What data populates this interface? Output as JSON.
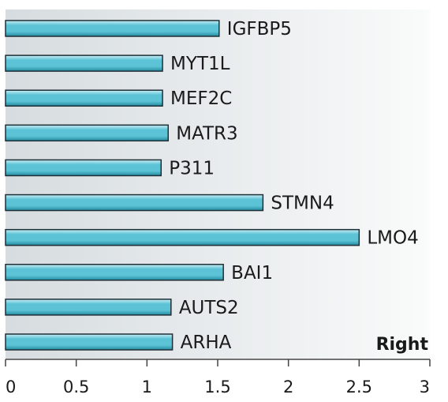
{
  "chart_data": {
    "type": "bar",
    "orientation": "horizontal",
    "panel_label": "Right",
    "categories": [
      "IGFBP5",
      "MYT1L",
      "MEF2C",
      "MATR3",
      "P311",
      "STMN4",
      "LMO4",
      "BAI1",
      "AUTS2",
      "ARHA"
    ],
    "values": [
      1.51,
      1.11,
      1.11,
      1.15,
      1.1,
      1.82,
      2.5,
      1.54,
      1.17,
      1.18
    ],
    "xlim": [
      0,
      3
    ],
    "xticks": [
      0,
      0.5,
      1,
      1.5,
      2,
      2.5,
      3
    ],
    "xtick_labels": [
      "0",
      "0.5",
      "1",
      "1.5",
      "2",
      "2.5",
      "3"
    ],
    "grid": false,
    "colors": {
      "bar_light": "#c9eef6",
      "bar_mid": "#5cc3d6",
      "bar_dark": "#238aa0",
      "bar_stroke": "#1f2f36",
      "panel_left": "#d6dcdf",
      "panel_right": "#fafbfb",
      "axis": "#444444",
      "text": "#1a1a1a"
    }
  }
}
